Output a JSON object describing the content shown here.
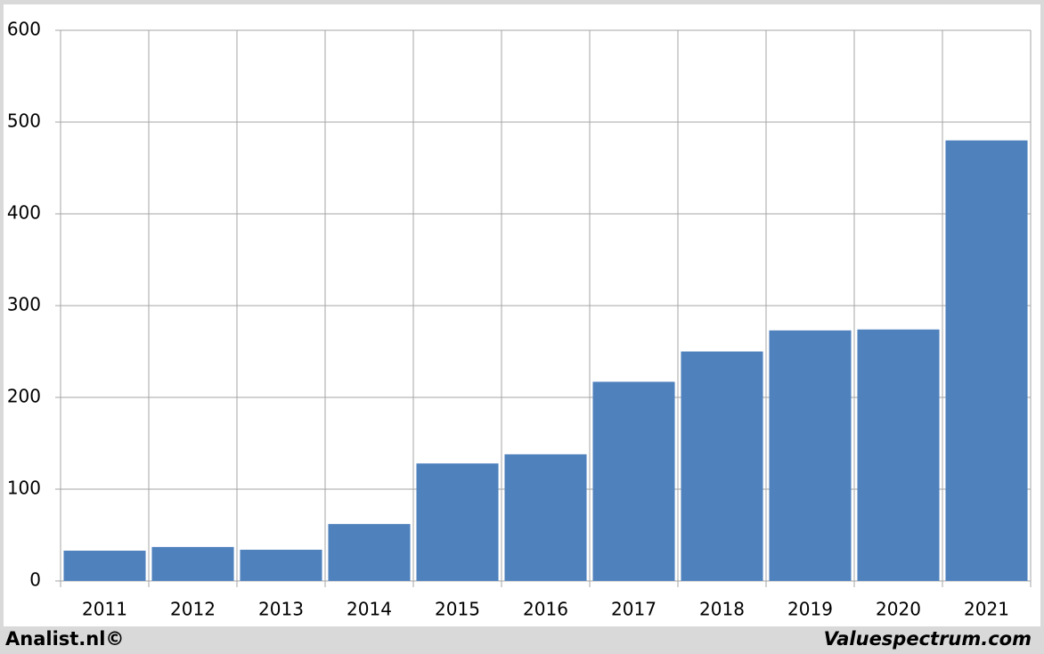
{
  "chart_data": {
    "type": "bar",
    "categories": [
      "2011",
      "2012",
      "2013",
      "2014",
      "2015",
      "2016",
      "2017",
      "2018",
      "2019",
      "2020",
      "2021"
    ],
    "values": [
      33,
      37,
      34,
      62,
      128,
      138,
      217,
      250,
      273,
      274,
      480
    ],
    "color": "#4f81bd",
    "ylim": [
      0,
      600
    ],
    "yticks": [
      0,
      100,
      200,
      300,
      400,
      500,
      600
    ],
    "grid": true
  },
  "footer": {
    "left": "Analist.nl©",
    "right": "Valuespectrum.com"
  }
}
